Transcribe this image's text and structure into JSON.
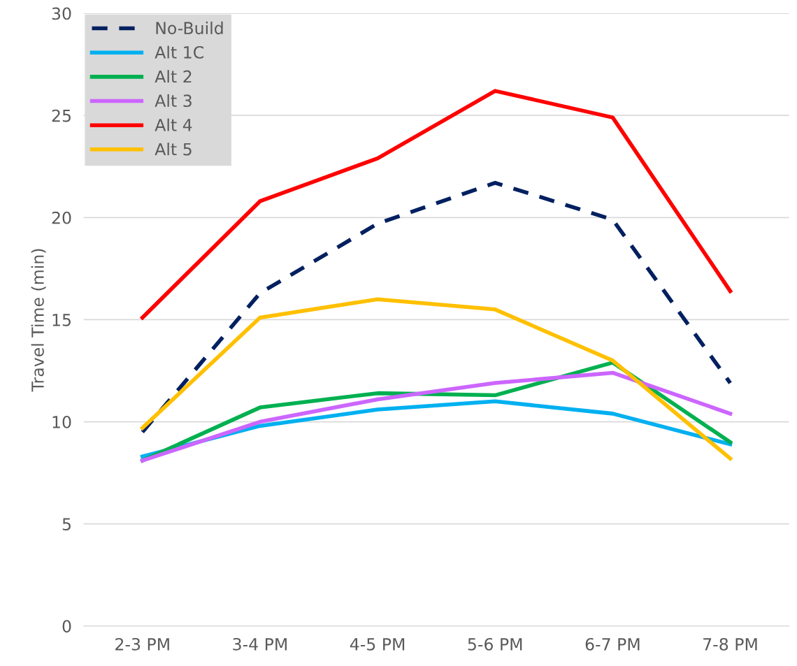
{
  "chart_data": {
    "type": "line",
    "ylabel": "Travel Time (min)",
    "categories": [
      "2-3 PM",
      "3-4 PM",
      "4-5 PM",
      "5-6 PM",
      "6-7 PM",
      "7-8 PM"
    ],
    "series": [
      {
        "name": "No-Build",
        "color": "#002060",
        "line_style": "dashed",
        "values": [
          9.5,
          16.3,
          19.7,
          21.7,
          19.9,
          11.9
        ]
      },
      {
        "name": "Alt 1C",
        "color": "#00b0f0",
        "values": [
          8.3,
          9.8,
          10.6,
          11.0,
          10.4,
          8.9
        ]
      },
      {
        "name": "Alt 2",
        "color": "#00b050",
        "values": [
          8.1,
          10.7,
          11.4,
          11.3,
          12.9,
          9.0
        ]
      },
      {
        "name": "Alt 3",
        "color": "#cc66ff",
        "values": [
          8.1,
          10.0,
          11.1,
          11.9,
          12.4,
          10.4
        ]
      },
      {
        "name": "Alt 4",
        "color": "#ff0000",
        "values": [
          15.1,
          20.8,
          22.9,
          26.2,
          24.9,
          16.4
        ]
      },
      {
        "name": "Alt 5",
        "color": "#ffc000",
        "values": [
          9.7,
          15.1,
          16.0,
          15.5,
          13.0,
          8.2
        ]
      }
    ],
    "ylim": [
      0,
      30
    ],
    "yticks": [
      0,
      5,
      10,
      15,
      20,
      25,
      30
    ],
    "grid": "y",
    "legend": "top left",
    "line_style": "solid",
    "marker": "none"
  }
}
